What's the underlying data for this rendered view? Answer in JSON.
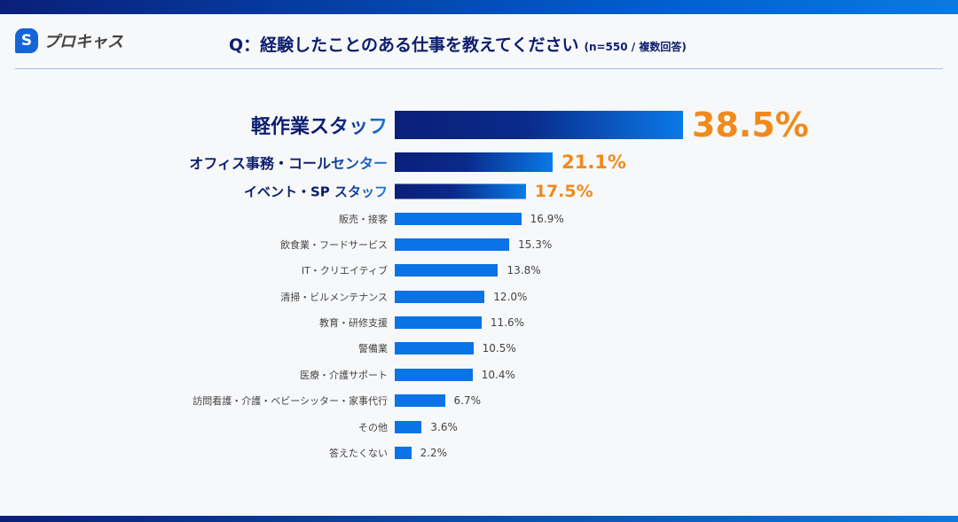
{
  "header": {
    "logo_text": "プロキャス",
    "logo_mark": "S",
    "title": "Q：経験したことのある仕事を教えてください",
    "subtitle": "(n=550 / 複数回答)"
  },
  "colors": {
    "highlight_value": "#f08a1c",
    "bar": "#0a73e6",
    "title": "#0d1e6e"
  },
  "chart_data": {
    "type": "bar",
    "orientation": "horizontal",
    "title": "Q：経験したことのある仕事を教えてください",
    "unit": "%",
    "categories": [
      "軽作業スタッフ",
      "オフィス事務・コールセンター",
      "イベント・SP スタッフ",
      "販売・接客",
      "飲食業・フードサービス",
      "IT・クリエイティブ",
      "清掃・ビルメンテナンス",
      "教育・研修支援",
      "警備業",
      "医療・介護サポート",
      "訪問看護・介護・ベビーシッター・家事代行",
      "その他",
      "答えたくない"
    ],
    "values": [
      38.5,
      21.1,
      17.5,
      16.9,
      15.3,
      13.8,
      12.0,
      11.6,
      10.5,
      10.4,
      6.7,
      3.6,
      2.2
    ],
    "labels": [
      "38.5%",
      "21.1%",
      "17.5%",
      "16.9%",
      "15.3%",
      "13.8%",
      "12.0%",
      "11.6%",
      "10.5%",
      "10.4%",
      "6.7%",
      "3.6%",
      "2.2%"
    ],
    "highlighted_top": 3
  }
}
